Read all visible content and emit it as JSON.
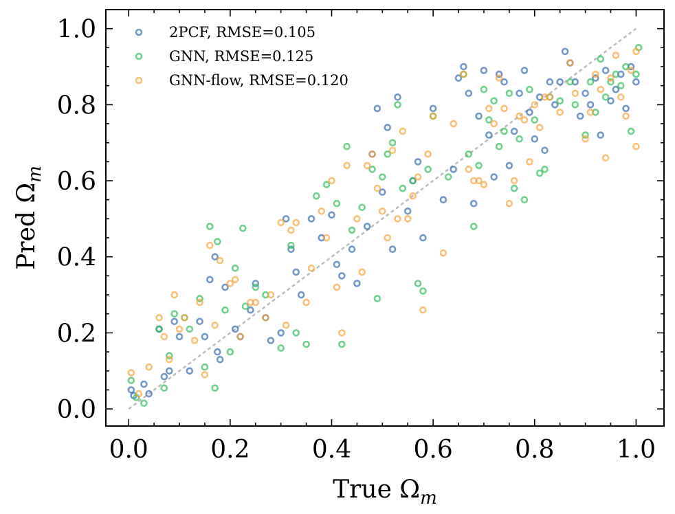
{
  "chart_data": {
    "type": "scatter",
    "xlabel": "True Ω",
    "xlabel_sub": "m",
    "ylabel": "Pred Ω",
    "ylabel_sub": "m",
    "xlim": [
      -0.045,
      1.055
    ],
    "ylim": [
      -0.045,
      1.05
    ],
    "xticks": [
      "0.0",
      "0.2",
      "0.4",
      "0.6",
      "0.8",
      "1.0"
    ],
    "yticks": [
      "0.0",
      "0.2",
      "0.4",
      "0.6",
      "0.8",
      "1.0"
    ],
    "legend_position": "top-left",
    "reference_line": {
      "label": "y = x",
      "from": [
        0.0,
        0.0
      ],
      "to": [
        1.0,
        1.0
      ],
      "style": "dashed",
      "color": "#bbbbbb"
    },
    "series": [
      {
        "name": "2PCF",
        "legend_label": "2PCF, RMSE=0.105",
        "color": "#3068b0",
        "points": [
          [
            0.005,
            0.05
          ],
          [
            0.01,
            0.035
          ],
          [
            0.03,
            0.065
          ],
          [
            0.04,
            0.04
          ],
          [
            0.06,
            0.21
          ],
          [
            0.07,
            0.085
          ],
          [
            0.08,
            0.1
          ],
          [
            0.09,
            0.23
          ],
          [
            0.1,
            0.19
          ],
          [
            0.12,
            0.1
          ],
          [
            0.14,
            0.23
          ],
          [
            0.15,
            0.19
          ],
          [
            0.16,
            0.34
          ],
          [
            0.17,
            0.4
          ],
          [
            0.175,
            0.15
          ],
          [
            0.18,
            0.13
          ],
          [
            0.19,
            0.32
          ],
          [
            0.21,
            0.21
          ],
          [
            0.22,
            0.19
          ],
          [
            0.24,
            0.26
          ],
          [
            0.25,
            0.33
          ],
          [
            0.27,
            0.24
          ],
          [
            0.28,
            0.18
          ],
          [
            0.3,
            0.2
          ],
          [
            0.31,
            0.5
          ],
          [
            0.32,
            0.42
          ],
          [
            0.33,
            0.36
          ],
          [
            0.34,
            0.3
          ],
          [
            0.36,
            0.5
          ],
          [
            0.38,
            0.45
          ],
          [
            0.4,
            0.51
          ],
          [
            0.41,
            0.38
          ],
          [
            0.42,
            0.35
          ],
          [
            0.44,
            0.42
          ],
          [
            0.45,
            0.33
          ],
          [
            0.47,
            0.48
          ],
          [
            0.48,
            0.67
          ],
          [
            0.49,
            0.79
          ],
          [
            0.5,
            0.57
          ],
          [
            0.51,
            0.74
          ],
          [
            0.52,
            0.42
          ],
          [
            0.53,
            0.82
          ],
          [
            0.55,
            0.52
          ],
          [
            0.56,
            0.6
          ],
          [
            0.57,
            0.65
          ],
          [
            0.58,
            0.45
          ],
          [
            0.6,
            0.79
          ],
          [
            0.62,
            0.55
          ],
          [
            0.64,
            0.63
          ],
          [
            0.65,
            0.87
          ],
          [
            0.66,
            0.9
          ],
          [
            0.67,
            0.83
          ],
          [
            0.68,
            0.54
          ],
          [
            0.69,
            0.77
          ],
          [
            0.7,
            0.89
          ],
          [
            0.71,
            0.72
          ],
          [
            0.72,
            0.61
          ],
          [
            0.73,
            0.88
          ],
          [
            0.74,
            0.86
          ],
          [
            0.75,
            0.64
          ],
          [
            0.76,
            0.73
          ],
          [
            0.77,
            0.83
          ],
          [
            0.78,
            0.89
          ],
          [
            0.79,
            0.78
          ],
          [
            0.8,
            0.71
          ],
          [
            0.81,
            0.82
          ],
          [
            0.82,
            0.68
          ],
          [
            0.83,
            0.86
          ],
          [
            0.84,
            0.8
          ],
          [
            0.85,
            0.86
          ],
          [
            0.86,
            0.94
          ],
          [
            0.87,
            0.91
          ],
          [
            0.88,
            0.86
          ],
          [
            0.89,
            0.77
          ],
          [
            0.9,
            0.83
          ],
          [
            0.91,
            0.8
          ],
          [
            0.92,
            0.87
          ],
          [
            0.93,
            0.72
          ],
          [
            0.94,
            0.89
          ],
          [
            0.95,
            0.81
          ],
          [
            0.96,
            0.84
          ],
          [
            0.97,
            0.88
          ],
          [
            0.98,
            0.79
          ],
          [
            0.99,
            0.9
          ],
          [
            1.0,
            0.86
          ]
        ]
      },
      {
        "name": "GNN",
        "legend_label": "GNN, RMSE=0.125",
        "color": "#2ebd59",
        "points": [
          [
            0.005,
            0.075
          ],
          [
            0.015,
            0.03
          ],
          [
            0.03,
            0.015
          ],
          [
            0.06,
            0.21
          ],
          [
            0.07,
            0.055
          ],
          [
            0.08,
            0.14
          ],
          [
            0.09,
            0.25
          ],
          [
            0.11,
            0.24
          ],
          [
            0.12,
            0.21
          ],
          [
            0.14,
            0.29
          ],
          [
            0.15,
            0.11
          ],
          [
            0.16,
            0.48
          ],
          [
            0.17,
            0.055
          ],
          [
            0.175,
            0.44
          ],
          [
            0.19,
            0.26
          ],
          [
            0.2,
            0.15
          ],
          [
            0.21,
            0.37
          ],
          [
            0.225,
            0.475
          ],
          [
            0.23,
            0.27
          ],
          [
            0.25,
            0.32
          ],
          [
            0.27,
            0.3
          ],
          [
            0.3,
            0.16
          ],
          [
            0.32,
            0.43
          ],
          [
            0.33,
            0.2
          ],
          [
            0.35,
            0.17
          ],
          [
            0.37,
            0.56
          ],
          [
            0.39,
            0.59
          ],
          [
            0.41,
            0.54
          ],
          [
            0.42,
            0.17
          ],
          [
            0.43,
            0.69
          ],
          [
            0.44,
            0.47
          ],
          [
            0.46,
            0.53
          ],
          [
            0.48,
            0.63
          ],
          [
            0.49,
            0.29
          ],
          [
            0.5,
            0.61
          ],
          [
            0.51,
            0.67
          ],
          [
            0.52,
            0.7
          ],
          [
            0.53,
            0.8
          ],
          [
            0.54,
            0.58
          ],
          [
            0.56,
            0.6
          ],
          [
            0.57,
            0.33
          ],
          [
            0.58,
            0.31
          ],
          [
            0.59,
            0.63
          ],
          [
            0.6,
            0.77
          ],
          [
            0.63,
            0.61
          ],
          [
            0.66,
            0.88
          ],
          [
            0.67,
            0.67
          ],
          [
            0.68,
            0.48
          ],
          [
            0.69,
            0.64
          ],
          [
            0.7,
            0.84
          ],
          [
            0.71,
            0.76
          ],
          [
            0.72,
            0.81
          ],
          [
            0.73,
            0.69
          ],
          [
            0.74,
            0.73
          ],
          [
            0.75,
            0.83
          ],
          [
            0.76,
            0.58
          ],
          [
            0.77,
            0.71
          ],
          [
            0.78,
            0.55
          ],
          [
            0.79,
            0.84
          ],
          [
            0.8,
            0.76
          ],
          [
            0.81,
            0.62
          ],
          [
            0.82,
            0.63
          ],
          [
            0.83,
            0.82
          ],
          [
            0.85,
            0.81
          ],
          [
            0.87,
            0.86
          ],
          [
            0.88,
            0.8
          ],
          [
            0.9,
            0.72
          ],
          [
            0.91,
            0.86
          ],
          [
            0.92,
            0.78
          ],
          [
            0.93,
            0.92
          ],
          [
            0.94,
            0.82
          ],
          [
            0.95,
            0.86
          ],
          [
            0.96,
            0.88
          ],
          [
            0.97,
            0.85
          ],
          [
            0.98,
            0.9
          ],
          [
            0.99,
            0.73
          ],
          [
            1.0,
            0.88
          ],
          [
            1.005,
            0.95
          ]
        ]
      },
      {
        "name": "GNN-flow",
        "legend_label": "GNN-flow, RMSE=0.120",
        "color": "#fba43a",
        "points": [
          [
            0.005,
            0.095
          ],
          [
            0.02,
            0.04
          ],
          [
            0.04,
            0.11
          ],
          [
            0.06,
            0.24
          ],
          [
            0.07,
            0.19
          ],
          [
            0.08,
            0.13
          ],
          [
            0.09,
            0.3
          ],
          [
            0.1,
            0.21
          ],
          [
            0.11,
            0.24
          ],
          [
            0.13,
            0.18
          ],
          [
            0.14,
            0.28
          ],
          [
            0.15,
            0.09
          ],
          [
            0.16,
            0.43
          ],
          [
            0.17,
            0.22
          ],
          [
            0.18,
            0.39
          ],
          [
            0.2,
            0.33
          ],
          [
            0.21,
            0.34
          ],
          [
            0.22,
            0.19
          ],
          [
            0.24,
            0.28
          ],
          [
            0.25,
            0.28
          ],
          [
            0.27,
            0.24
          ],
          [
            0.28,
            0.3
          ],
          [
            0.3,
            0.49
          ],
          [
            0.31,
            0.22
          ],
          [
            0.32,
            0.47
          ],
          [
            0.33,
            0.49
          ],
          [
            0.35,
            0.28
          ],
          [
            0.36,
            0.37
          ],
          [
            0.38,
            0.52
          ],
          [
            0.39,
            0.45
          ],
          [
            0.4,
            0.6
          ],
          [
            0.41,
            0.32
          ],
          [
            0.42,
            0.2
          ],
          [
            0.43,
            0.64
          ],
          [
            0.45,
            0.5
          ],
          [
            0.46,
            0.36
          ],
          [
            0.47,
            0.64
          ],
          [
            0.48,
            0.67
          ],
          [
            0.49,
            0.58
          ],
          [
            0.5,
            0.52
          ],
          [
            0.51,
            0.45
          ],
          [
            0.52,
            0.68
          ],
          [
            0.53,
            0.5
          ],
          [
            0.54,
            0.73
          ],
          [
            0.55,
            0.5
          ],
          [
            0.56,
            0.56
          ],
          [
            0.57,
            0.61
          ],
          [
            0.58,
            0.26
          ],
          [
            0.59,
            0.67
          ],
          [
            0.6,
            0.77
          ],
          [
            0.62,
            0.41
          ],
          [
            0.64,
            0.75
          ],
          [
            0.66,
            0.88
          ],
          [
            0.67,
            0.63
          ],
          [
            0.68,
            0.6
          ],
          [
            0.69,
            0.6
          ],
          [
            0.7,
            0.59
          ],
          [
            0.71,
            0.79
          ],
          [
            0.72,
            0.75
          ],
          [
            0.73,
            0.87
          ],
          [
            0.74,
            0.79
          ],
          [
            0.75,
            0.54
          ],
          [
            0.76,
            0.6
          ],
          [
            0.77,
            0.77
          ],
          [
            0.78,
            0.76
          ],
          [
            0.79,
            0.65
          ],
          [
            0.8,
            0.8
          ],
          [
            0.81,
            0.74
          ],
          [
            0.82,
            0.82
          ],
          [
            0.83,
            0.82
          ],
          [
            0.85,
            0.78
          ],
          [
            0.87,
            0.91
          ],
          [
            0.88,
            0.83
          ],
          [
            0.9,
            0.71
          ],
          [
            0.91,
            0.78
          ],
          [
            0.92,
            0.88
          ],
          [
            0.93,
            0.84
          ],
          [
            0.94,
            0.66
          ],
          [
            0.95,
            0.87
          ],
          [
            0.96,
            0.93
          ],
          [
            0.97,
            0.82
          ],
          [
            0.98,
            0.77
          ],
          [
            0.99,
            0.89
          ],
          [
            1.0,
            0.69
          ],
          [
            1.0,
            0.94
          ]
        ]
      }
    ]
  }
}
